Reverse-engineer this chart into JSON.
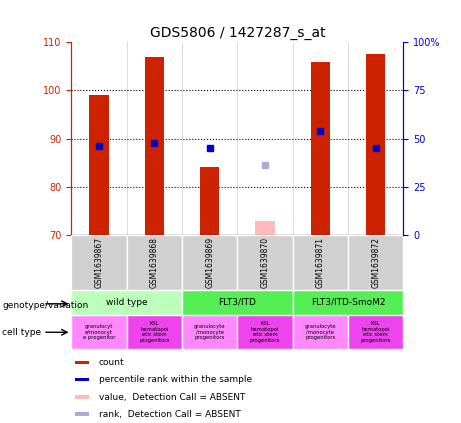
{
  "title": "GDS5806 / 1427287_s_at",
  "samples": [
    "GSM1639867",
    "GSM1639868",
    "GSM1639869",
    "GSM1639870",
    "GSM1639871",
    "GSM1639872"
  ],
  "bar_values": [
    99.0,
    107.0,
    84.0,
    null,
    106.0,
    107.5
  ],
  "absent_bar_values": [
    null,
    null,
    null,
    72.8,
    null,
    null
  ],
  "blue_square_values": [
    88.5,
    89.0,
    88.0,
    null,
    91.5,
    88.0
  ],
  "absent_blue_square_values": [
    null,
    null,
    null,
    84.5,
    null,
    null
  ],
  "ylim_left": [
    70,
    110
  ],
  "ylim_right": [
    0,
    100
  ],
  "yticks_left": [
    70,
    80,
    90,
    100,
    110
  ],
  "yticks_right": [
    0,
    25,
    50,
    75,
    100
  ],
  "ytick_labels_right": [
    "0",
    "25",
    "50",
    "75",
    "100%"
  ],
  "bar_color_red": "#cc2200",
  "bar_color_absent": "#ffbbbb",
  "blue_color": "#0000cc",
  "blue_absent_color": "#aaaadd",
  "geno_groups": [
    {
      "label": "wild type",
      "start": 0,
      "end": 1,
      "color": "#bbffbb"
    },
    {
      "label": "FLT3/ITD",
      "start": 2,
      "end": 3,
      "color": "#55ee55"
    },
    {
      "label": "FLT3/ITD-SmoM2",
      "start": 4,
      "end": 5,
      "color": "#55ee55"
    }
  ],
  "cell_colors": [
    "#ff88ff",
    "#ee44ee",
    "#ff88ff",
    "#ee44ee",
    "#ff88ff",
    "#ee44ee"
  ],
  "cell_labels": [
    "granulocyt\ne/monocyt\ne progenitor",
    "KSL\nhematopoi\netic stem\nprogenitors",
    "granulocyte\n/monocyte\nprogenitors",
    "KSL\nhematopoi\netic stem\nprogenitors",
    "granulocyte\n/monocyte\nprogenitors",
    "KSL\nhematopoi\netic stem\nprogenitors"
  ],
  "legend_items": [
    {
      "label": "count",
      "color": "#cc2200"
    },
    {
      "label": "percentile rank within the sample",
      "color": "#0000cc"
    },
    {
      "label": "value,  Detection Call = ABSENT",
      "color": "#ffbbbb"
    },
    {
      "label": "rank,  Detection Call = ABSENT",
      "color": "#aaaadd"
    }
  ]
}
